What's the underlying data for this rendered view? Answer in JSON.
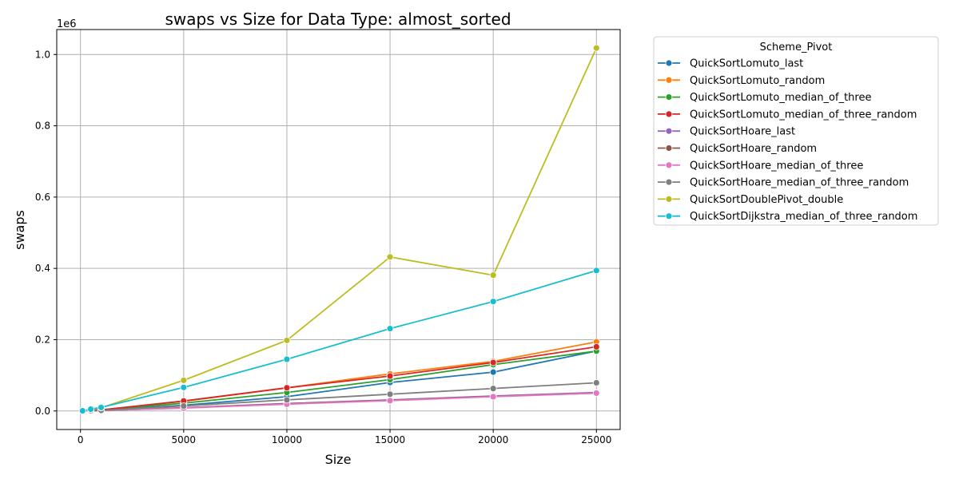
{
  "chart_data": {
    "type": "line",
    "title": "swaps vs Size for Data Type: almost_sorted",
    "xlabel": "Size",
    "ylabel": "swaps",
    "y_multiplier_label": "1e6",
    "xlim": [
      -1150,
      26150
    ],
    "ylim": [
      -0.052,
      1.07
    ],
    "xticks": [
      0,
      5000,
      10000,
      15000,
      20000,
      25000
    ],
    "xtick_labels": [
      "0",
      "5000",
      "10000",
      "15000",
      "20000",
      "25000"
    ],
    "yticks": [
      0.0,
      0.2,
      0.4,
      0.6,
      0.8,
      1.0
    ],
    "ytick_labels": [
      "0.0",
      "0.2",
      "0.4",
      "0.6",
      "0.8",
      "1.0"
    ],
    "grid": true,
    "legend_title": "Scheme_Pivot",
    "legend_position": "outside-right-top",
    "x": [
      100,
      500,
      1000,
      5000,
      10000,
      15000,
      20000,
      25000
    ],
    "series": [
      {
        "name": "QuickSortLomuto_last",
        "color": "#1f77b4",
        "values": [
          0.0002,
          0.0012,
          0.0024,
          0.016,
          0.04,
          0.08,
          0.109,
          0.168
        ]
      },
      {
        "name": "QuickSortLomuto_random",
        "color": "#ff7f0e",
        "values": [
          0.0003,
          0.0014,
          0.003,
          0.027,
          0.065,
          0.104,
          0.139,
          0.194
        ]
      },
      {
        "name": "QuickSortLomuto_median_of_three",
        "color": "#2ca02c",
        "values": [
          0.0003,
          0.0013,
          0.0028,
          0.022,
          0.052,
          0.088,
          0.13,
          0.168
        ]
      },
      {
        "name": "QuickSortLomuto_median_of_three_random",
        "color": "#d62728",
        "values": [
          0.0003,
          0.0015,
          0.0032,
          0.028,
          0.065,
          0.098,
          0.136,
          0.18
        ]
      },
      {
        "name": "QuickSortHoare_last",
        "color": "#9467bd",
        "values": [
          0.0001,
          0.0006,
          0.0013,
          0.009,
          0.021,
          0.031,
          0.042,
          0.052
        ]
      },
      {
        "name": "QuickSortHoare_random",
        "color": "#8c564b",
        "values": [
          0.0001,
          0.0006,
          0.0013,
          0.009,
          0.02,
          0.03,
          0.041,
          0.05
        ]
      },
      {
        "name": "QuickSortHoare_median_of_three",
        "color": "#e377c2",
        "values": [
          0.0001,
          0.0005,
          0.0012,
          0.008,
          0.019,
          0.029,
          0.04,
          0.05
        ]
      },
      {
        "name": "QuickSortHoare_median_of_three_random",
        "color": "#7f7f7f",
        "values": [
          0.0001,
          0.0008,
          0.0018,
          0.014,
          0.031,
          0.047,
          0.063,
          0.079
        ]
      },
      {
        "name": "QuickSortDoublePivot_double",
        "color": "#bcbd22",
        "values": [
          0.0005,
          0.004,
          0.009,
          0.086,
          0.198,
          0.432,
          0.381,
          1.018
        ]
      },
      {
        "name": "QuickSortDijkstra_median_of_three_random",
        "color": "#17becf",
        "values": [
          0.0005,
          0.005,
          0.01,
          0.066,
          0.145,
          0.231,
          0.307,
          0.394
        ]
      }
    ]
  }
}
